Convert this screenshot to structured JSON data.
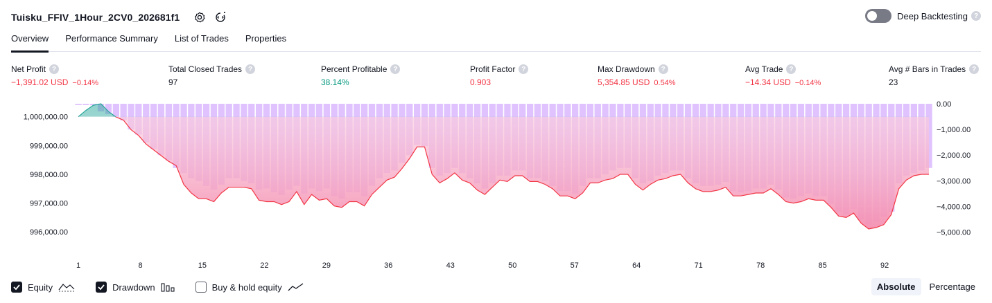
{
  "header": {
    "title": "Tuisku_FFIV_1Hour_2CV0_202681f1",
    "settings_icon": "gear-icon",
    "source_icon": "code-settings-icon",
    "deep_backtesting_label": "Deep Backtesting",
    "deep_backtesting_enabled": false,
    "help_glyph": "?"
  },
  "tabs": [
    {
      "label": "Overview",
      "active": true
    },
    {
      "label": "Performance Summary",
      "active": false
    },
    {
      "label": "List of Trades",
      "active": false
    },
    {
      "label": "Properties",
      "active": false
    }
  ],
  "metrics": {
    "net_profit": {
      "label": "Net Profit",
      "value": "−1,391.02 USD",
      "pct": "−0.14%"
    },
    "total_closed_trades": {
      "label": "Total Closed Trades",
      "value": "97"
    },
    "percent_profitable": {
      "label": "Percent Profitable",
      "value": "38.14%"
    },
    "profit_factor": {
      "label": "Profit Factor",
      "value": "0.903"
    },
    "max_drawdown": {
      "label": "Max Drawdown",
      "value": "5,354.85 USD",
      "pct": "0.54%"
    },
    "avg_trade": {
      "label": "Avg Trade",
      "value": "−14.34 USD",
      "pct": "−0.14%"
    },
    "avg_bars": {
      "label": "Avg # Bars in Trades",
      "value": "23"
    }
  },
  "colors": {
    "negative": "#f23645",
    "positive": "#089981",
    "drawdown_bar": "#d8b4fe",
    "equity_below": "#f48fb1",
    "equity_above": "#26a69a"
  },
  "chart_data": {
    "type": "area",
    "x_ticks": [
      "1",
      "8",
      "15",
      "22",
      "29",
      "36",
      "43",
      "50",
      "57",
      "64",
      "71",
      "78",
      "85",
      "92"
    ],
    "left_axis": {
      "ticks": [
        "1,000,000.00",
        "999,000.00",
        "998,000.00",
        "997,000.00",
        "996,000.00"
      ],
      "range": [
        995500,
        1000450
      ]
    },
    "right_axis": {
      "ticks": [
        "0.00",
        "−1,000.00",
        "−2,000.00",
        "−3,000.00",
        "−4,000.00",
        "−5,000.00"
      ],
      "range": [
        -5550,
        0
      ]
    },
    "series": [
      {
        "name": "Equity",
        "values": [
          1000000,
          1000220,
          1000400,
          1000450,
          1000180,
          999990,
          999880,
          999550,
          999350,
          999050,
          998850,
          998650,
          998450,
          998300,
          997650,
          997350,
          997150,
          997150,
          997050,
          997350,
          997550,
          997550,
          997550,
          997500,
          997100,
          997050,
          997050,
          996950,
          997050,
          997400,
          996950,
          997300,
          997100,
          997150,
          996900,
          996850,
          997050,
          997050,
          996900,
          997300,
          997550,
          997800,
          997900,
          998200,
          998550,
          998950,
          998950,
          998000,
          997700,
          997850,
          998050,
          997800,
          997700,
          997450,
          997300,
          997550,
          997800,
          997750,
          997950,
          997950,
          997750,
          997750,
          997650,
          997500,
          997250,
          997250,
          997150,
          997350,
          997700,
          997700,
          997800,
          997850,
          998000,
          998000,
          997650,
          997450,
          997650,
          997800,
          997850,
          997950,
          998000,
          997700,
          997500,
          997400,
          997400,
          997450,
          997550,
          997250,
          997250,
          997300,
          997350,
          997350,
          997500,
          997300,
          997050,
          997000,
          997050,
          997150,
          997100,
          997100,
          996850,
          996550,
          996500,
          996650,
          996300,
          996100,
          996150,
          996250,
          996600,
          997500,
          997800,
          997950,
          998000,
          998000
        ]
      },
      {
        "name": "Drawdown",
        "values": [
          -50,
          -50,
          -60,
          -300,
          -400,
          -500,
          -650,
          -1000,
          -1200,
          -1500,
          -1750,
          -2000,
          -2200,
          -2500,
          -2700,
          -2900,
          -3000,
          -3200,
          -3350,
          -3150,
          -2900,
          -2900,
          -3000,
          -3100,
          -3350,
          -3300,
          -3450,
          -3550,
          -3350,
          -3200,
          -3500,
          -3300,
          -3400,
          -3300,
          -3600,
          -3700,
          -3450,
          -3450,
          -3600,
          -3200,
          -2900,
          -2700,
          -2600,
          -2300,
          -2000,
          -1600,
          -1650,
          -2500,
          -2800,
          -2700,
          -2500,
          -2700,
          -2900,
          -3100,
          -3300,
          -3100,
          -2800,
          -2800,
          -2600,
          -2600,
          -2900,
          -2900,
          -3000,
          -3200,
          -3400,
          -3400,
          -3500,
          -3200,
          -2900,
          -2900,
          -2750,
          -2600,
          -2500,
          -2500,
          -2900,
          -3100,
          -3000,
          -2800,
          -2700,
          -2600,
          -2600,
          -2900,
          -3100,
          -3200,
          -3200,
          -3150,
          -3050,
          -3400,
          -3450,
          -3400,
          -3300,
          -3300,
          -3150,
          -3350,
          -3650,
          -3700,
          -3600,
          -3500,
          -3600,
          -3600,
          -3900,
          -4200,
          -4300,
          -4100,
          -4500,
          -4700,
          -4600,
          -4400,
          -4200,
          -3100,
          -2800,
          -2700,
          -2600,
          -2500
        ]
      }
    ]
  },
  "bottom": {
    "equity": {
      "label": "Equity",
      "checked": true
    },
    "drawdown": {
      "label": "Drawdown",
      "checked": true
    },
    "buy_hold": {
      "label": "Buy & hold equity",
      "checked": false
    },
    "absolute_label": "Absolute",
    "percentage_label": "Percentage"
  }
}
